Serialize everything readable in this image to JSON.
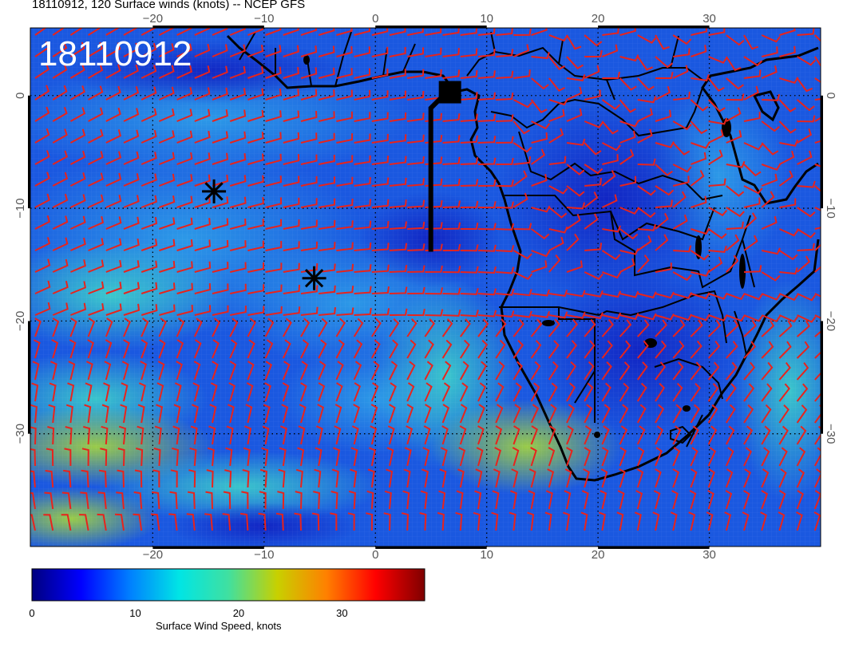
{
  "title": "18110912, 120 Surface winds (knots) -- NCEP GFS",
  "run_label": "18110912",
  "map": {
    "lon_range": [
      -31,
      40
    ],
    "lat_range": [
      -40,
      6
    ],
    "lon_ticks": [
      -20,
      -10,
      0,
      10,
      20,
      30
    ],
    "lat_ticks": [
      0,
      -10,
      -20,
      -30
    ],
    "lon_tick_labels": [
      "−20",
      "−10",
      "0",
      "10",
      "20",
      "30"
    ],
    "lat_tick_labels": [
      "0",
      "−10",
      "−20",
      "−30"
    ],
    "barb_color": "#e8231c",
    "coast_color": "#000000"
  },
  "markers": [
    {
      "type": "asterisk",
      "lon": -14.5,
      "lat": -8.5
    },
    {
      "type": "asterisk",
      "lon": -5.5,
      "lat": -16.2
    },
    {
      "type": "track-square",
      "lon": 6.7,
      "lat": 0.3
    }
  ],
  "colorbar": {
    "label": "Surface Wind Speed, knots",
    "min": 0,
    "max": 38,
    "ticks": [
      0,
      10,
      20,
      30
    ],
    "tick_labels": [
      "0",
      "10",
      "20",
      "30"
    ],
    "stops": [
      "#00007f",
      "#0000ff",
      "#0080ff",
      "#00e5e5",
      "#40e0a0",
      "#c8d000",
      "#ff8000",
      "#ff0000",
      "#7f0000"
    ]
  }
}
